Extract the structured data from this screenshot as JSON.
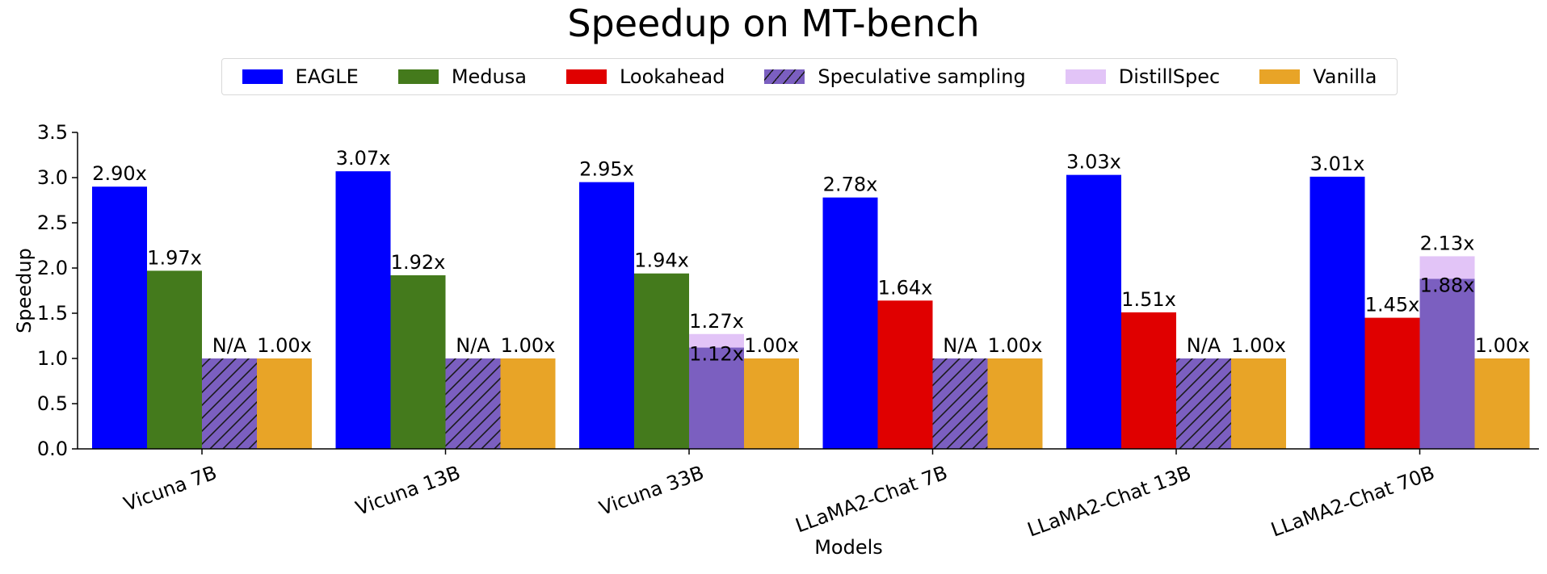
{
  "chart_data": {
    "type": "bar",
    "title": "Speedup on MT-bench",
    "xlabel": "Models",
    "ylabel": "Speedup",
    "ylim": [
      0,
      3.5
    ],
    "yticks": [
      "0.0",
      "0.5",
      "1.0",
      "1.5",
      "2.0",
      "2.5",
      "3.0",
      "3.5"
    ],
    "grid": false,
    "legend_position": "top-center",
    "categories": [
      "Vicuna 7B",
      "Vicuna 13B",
      "Vicuna 33B",
      "LLaMA2-Chat 7B",
      "LLaMA2-Chat 13B",
      "LLaMA2-Chat 70B"
    ],
    "series": [
      {
        "name": "EAGLE",
        "color": "#0000ff",
        "hatch": false,
        "values": [
          2.9,
          3.07,
          2.95,
          2.78,
          3.03,
          3.01
        ],
        "labels": [
          "2.90x",
          "3.07x",
          "2.95x",
          "2.78x",
          "3.03x",
          "3.01x"
        ]
      },
      {
        "name": "Medusa",
        "color": "#447a1c",
        "hatch": false,
        "values": [
          1.97,
          1.92,
          1.94,
          null,
          null,
          null
        ],
        "labels": [
          "1.97x",
          "1.92x",
          "1.94x",
          null,
          null,
          null
        ]
      },
      {
        "name": "Lookahead",
        "color": "#e00000",
        "hatch": false,
        "values": [
          null,
          null,
          null,
          1.64,
          1.51,
          1.45
        ],
        "labels": [
          null,
          null,
          null,
          "1.64x",
          "1.51x",
          "1.45x"
        ]
      },
      {
        "name": "Speculative sampling",
        "color": "#7b5fc0",
        "hatch": true,
        "values": [
          1.0,
          1.0,
          1.12,
          1.0,
          1.0,
          1.88
        ],
        "labels": [
          "N/A",
          "N/A",
          "1.12x",
          "N/A",
          "N/A",
          "1.88x"
        ],
        "hatched": [
          true,
          true,
          false,
          true,
          true,
          false
        ]
      },
      {
        "name": "DistillSpec",
        "color": "#e2c4f7",
        "hatch": false,
        "values": [
          null,
          null,
          1.27,
          null,
          null,
          2.13
        ],
        "labels": [
          null,
          null,
          "1.27x",
          null,
          null,
          "2.13x"
        ]
      },
      {
        "name": "Vanilla",
        "color": "#e8a427",
        "hatch": false,
        "values": [
          1.0,
          1.0,
          1.0,
          1.0,
          1.0,
          1.0
        ],
        "labels": [
          "1.00x",
          "1.00x",
          "1.00x",
          "1.00x",
          "1.00x",
          "1.00x"
        ]
      }
    ]
  }
}
